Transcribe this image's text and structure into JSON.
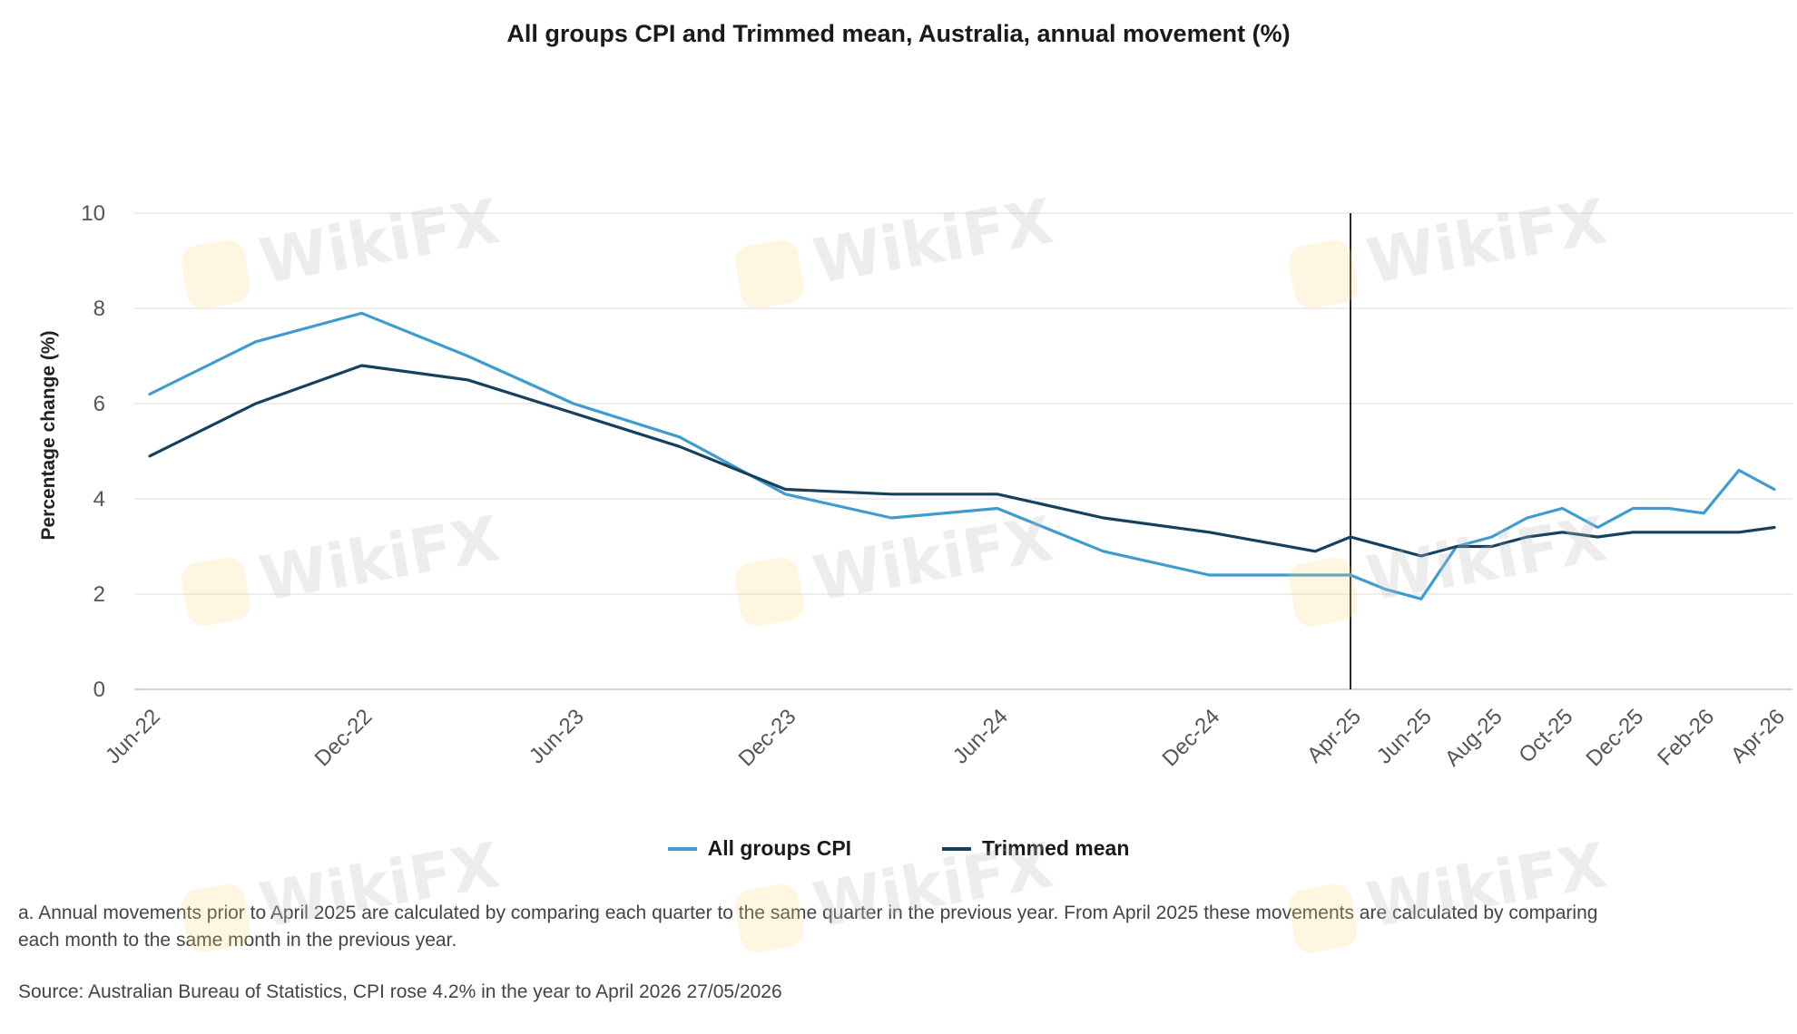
{
  "chart_data": {
    "type": "line",
    "title": "All groups CPI and Trimmed mean, Australia, annual movement (%)",
    "ylabel": "Percentage change (%)",
    "xlabel": "",
    "ylim": [
      0,
      10
    ],
    "yticks": [
      0,
      2,
      4,
      6,
      8,
      10
    ],
    "x": [
      "Jun-22",
      "Sep-22",
      "Dec-22",
      "Mar-23",
      "Jun-23",
      "Sep-23",
      "Dec-23",
      "Mar-24",
      "Jun-24",
      "Sep-24",
      "Dec-24",
      "Mar-25",
      "Apr-25",
      "May-25",
      "Jun-25",
      "Jul-25",
      "Aug-25",
      "Sep-25",
      "Oct-25",
      "Nov-25",
      "Dec-25",
      "Jan-26",
      "Feb-26",
      "Mar-26",
      "Apr-26"
    ],
    "x_tick_labels": [
      "Jun-22",
      "Dec-22",
      "Jun-23",
      "Dec-23",
      "Jun-24",
      "Dec-24",
      "Apr-25",
      "Jun-25",
      "Aug-25",
      "Oct-25",
      "Dec-25",
      "Feb-26",
      "Apr-26"
    ],
    "vertical_marker": "Apr-25",
    "grid": "horizontal",
    "legend_position": "bottom-center",
    "series": [
      {
        "name": "All groups CPI",
        "color": "#3f9ccf",
        "values": [
          6.2,
          7.3,
          7.9,
          7.0,
          6.0,
          5.3,
          4.1,
          3.6,
          3.8,
          2.9,
          2.4,
          2.4,
          2.4,
          2.1,
          1.9,
          3.0,
          3.2,
          3.6,
          3.8,
          3.4,
          3.8,
          3.8,
          3.7,
          4.6,
          4.2
        ]
      },
      {
        "name": "Trimmed mean",
        "color": "#15415f",
        "values": [
          4.9,
          6.0,
          6.8,
          6.5,
          5.8,
          5.1,
          4.2,
          4.1,
          4.1,
          3.6,
          3.3,
          2.9,
          3.2,
          3.0,
          2.8,
          3.0,
          3.0,
          3.2,
          3.3,
          3.2,
          3.3,
          3.3,
          3.3,
          3.3,
          3.4
        ]
      }
    ]
  },
  "notes": {
    "footnote": "a. Annual movements prior to April 2025 are calculated by comparing each quarter to the same quarter in the previous year.  From April 2025 these movements are calculated by comparing each month to the same month in the previous year.",
    "source": "Source: Australian Bureau of Statistics, CPI rose 4.2% in the year to April 2026 27/05/2026"
  },
  "watermark": "WikiFX"
}
